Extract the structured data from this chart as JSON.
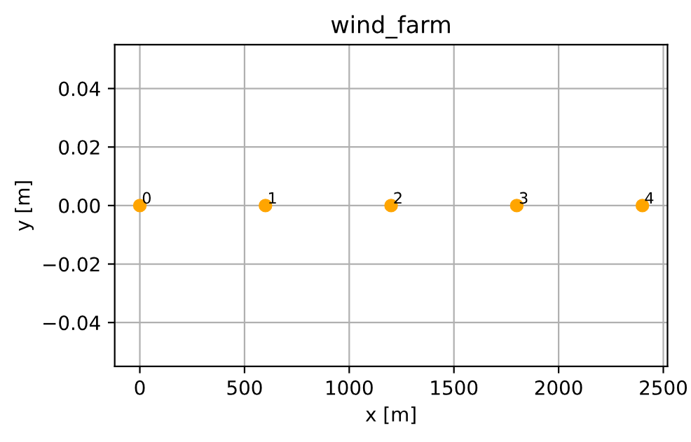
{
  "chart_data": {
    "type": "scatter",
    "title": "wind_farm",
    "xlabel": "x [m]",
    "ylabel": "y [m]",
    "x": [
      0,
      600,
      1200,
      1800,
      2400
    ],
    "series": [
      {
        "color": "#ffa500",
        "values": [
          0,
          0,
          0,
          0,
          0
        ]
      }
    ],
    "annotations": [
      {
        "text": "0",
        "x": 0,
        "y": 0
      },
      {
        "text": "1",
        "x": 600,
        "y": 0
      },
      {
        "text": "2",
        "x": 1200,
        "y": 0
      },
      {
        "text": "3",
        "x": 1800,
        "y": 0
      },
      {
        "text": "4",
        "x": 2400,
        "y": 0
      }
    ],
    "xlim": [
      -120,
      2520
    ],
    "xticks": [
      0,
      500,
      1000,
      1500,
      2000,
      2500
    ],
    "ylim": [
      -0.055,
      0.055
    ],
    "yticks": [
      {
        "value": -0.04,
        "label": "−0.04"
      },
      {
        "value": -0.02,
        "label": "−0.02"
      },
      {
        "value": 0,
        "label": "0.00"
      },
      {
        "value": 0.02,
        "label": "0.02"
      },
      {
        "value": 0.04,
        "label": "0.04"
      }
    ],
    "grid": true,
    "marker": "circle"
  }
}
